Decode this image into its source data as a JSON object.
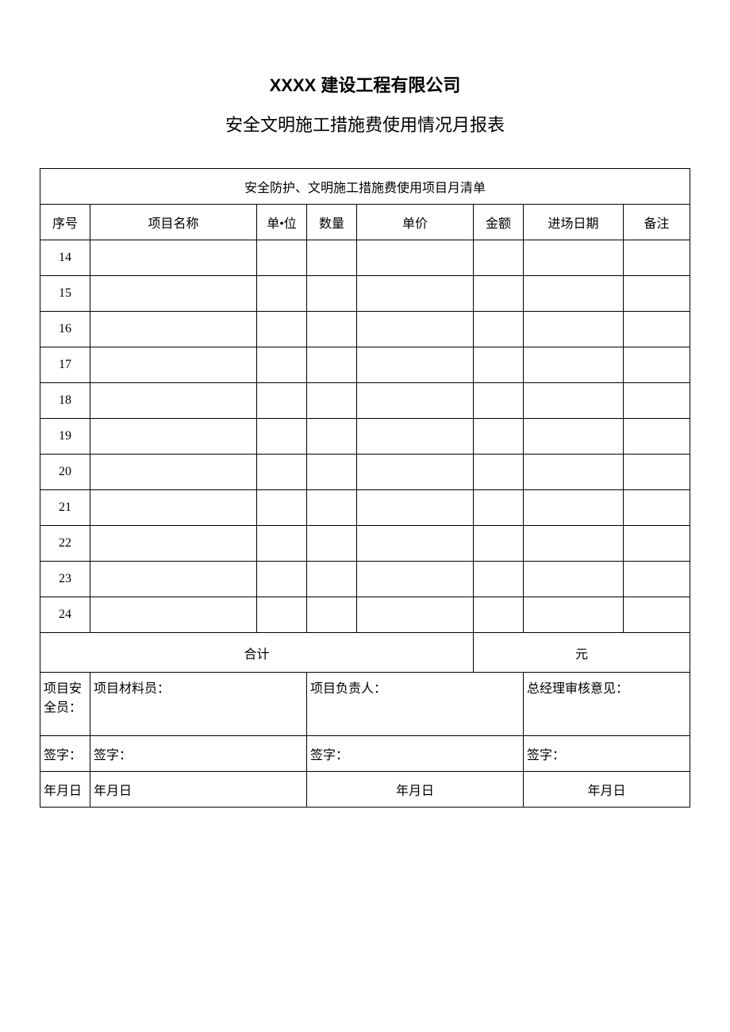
{
  "title1": "XXXX 建设工程有限公司",
  "title2": "安全文明施工措施费使用情况月报表",
  "tableTitle": "安全防护、文明施工措施费使用项目月清单",
  "headers": {
    "seq": "序号",
    "name": "项目名称",
    "unit": "单•位",
    "qty": "数量",
    "price": "单价",
    "amount": "金额",
    "date": "进场日期",
    "remark": "备注"
  },
  "rows": [
    {
      "seq": "14",
      "name": "",
      "unit": "",
      "qty": "",
      "price": "",
      "amount": "",
      "date": "",
      "remark": ""
    },
    {
      "seq": "15",
      "name": "",
      "unit": "",
      "qty": "",
      "price": "",
      "amount": "",
      "date": "",
      "remark": ""
    },
    {
      "seq": "16",
      "name": "",
      "unit": "",
      "qty": "",
      "price": "",
      "amount": "",
      "date": "",
      "remark": ""
    },
    {
      "seq": "17",
      "name": "",
      "unit": "",
      "qty": "",
      "price": "",
      "amount": "",
      "date": "",
      "remark": ""
    },
    {
      "seq": "18",
      "name": "",
      "unit": "",
      "qty": "",
      "price": "",
      "amount": "",
      "date": "",
      "remark": ""
    },
    {
      "seq": "19",
      "name": "",
      "unit": "",
      "qty": "",
      "price": "",
      "amount": "",
      "date": "",
      "remark": ""
    },
    {
      "seq": "20",
      "name": "",
      "unit": "",
      "qty": "",
      "price": "",
      "amount": "",
      "date": "",
      "remark": ""
    },
    {
      "seq": "21",
      "name": "",
      "unit": "",
      "qty": "",
      "price": "",
      "amount": "",
      "date": "",
      "remark": ""
    },
    {
      "seq": "22",
      "name": "",
      "unit": "",
      "qty": "",
      "price": "",
      "amount": "",
      "date": "",
      "remark": ""
    },
    {
      "seq": "23",
      "name": "",
      "unit": "",
      "qty": "",
      "price": "",
      "amount": "",
      "date": "",
      "remark": ""
    },
    {
      "seq": "24",
      "name": "",
      "unit": "",
      "qty": "",
      "price": "",
      "amount": "",
      "date": "",
      "remark": ""
    }
  ],
  "total": {
    "label": "合计",
    "unit": "元"
  },
  "signatures": {
    "safety": "项目安全员：",
    "material": "项目材料员：",
    "leader": "项目负责人：",
    "manager": "总经理审核意见：",
    "sign": "签字：",
    "date": "年月日"
  }
}
